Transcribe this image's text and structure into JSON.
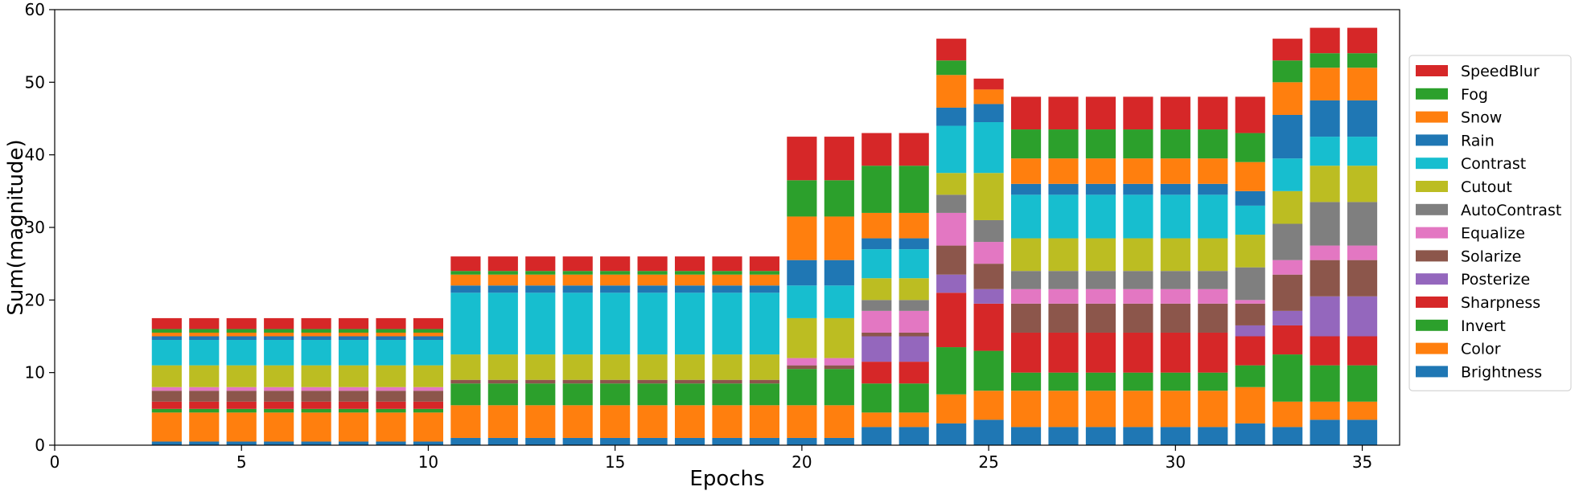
{
  "chart_data": {
    "type": "bar",
    "stacked": true,
    "xlabel": "Epochs",
    "ylabel": "Sum(magnitude)",
    "xlim": [
      0,
      36
    ],
    "ylim": [
      0,
      60
    ],
    "xticks": [
      0,
      5,
      10,
      15,
      20,
      25,
      30,
      35
    ],
    "yticks": [
      0,
      10,
      20,
      30,
      40,
      50,
      60
    ],
    "legend_position": "right",
    "grid": false,
    "x": [
      3,
      4,
      5,
      6,
      7,
      8,
      9,
      10,
      11,
      12,
      13,
      14,
      15,
      16,
      17,
      18,
      19,
      20,
      21,
      22,
      23,
      24,
      25,
      26,
      27,
      28,
      29,
      30,
      31,
      32,
      33,
      34,
      35
    ],
    "series": [
      {
        "name": "Brightness",
        "color": "#1f77b4",
        "values": [
          0.5,
          0.5,
          0.5,
          0.5,
          0.5,
          0.5,
          0.5,
          0.5,
          1,
          1,
          1,
          1,
          1,
          1,
          1,
          1,
          1,
          1,
          1,
          2.5,
          2.5,
          3,
          3.5,
          2.5,
          2.5,
          2.5,
          2.5,
          2.5,
          2.5,
          3,
          2.5,
          3.5,
          3.5
        ]
      },
      {
        "name": "Color",
        "color": "#ff7f0e",
        "values": [
          4,
          4,
          4,
          4,
          4,
          4,
          4,
          4,
          4.5,
          4.5,
          4.5,
          4.5,
          4.5,
          4.5,
          4.5,
          4.5,
          4.5,
          4.5,
          4.5,
          2,
          2,
          4,
          4,
          5,
          5,
          5,
          5,
          5,
          5,
          5,
          3.5,
          2.5,
          2.5
        ]
      },
      {
        "name": "Invert",
        "color": "#2ca02c",
        "values": [
          0.5,
          0.5,
          0.5,
          0.5,
          0.5,
          0.5,
          0.5,
          0.5,
          3,
          3,
          3,
          3,
          3,
          3,
          3,
          3,
          3,
          5,
          5,
          4,
          4,
          6.5,
          5.5,
          2.5,
          2.5,
          2.5,
          2.5,
          2.5,
          2.5,
          3,
          6.5,
          5,
          5
        ]
      },
      {
        "name": "Sharpness",
        "color": "#d62728",
        "values": [
          1,
          1,
          1,
          1,
          1,
          1,
          1,
          1,
          0,
          0,
          0,
          0,
          0,
          0,
          0,
          0,
          0,
          0,
          0,
          3,
          3,
          7.5,
          6.5,
          5.5,
          5.5,
          5.5,
          5.5,
          5.5,
          5.5,
          4,
          4,
          4,
          4
        ]
      },
      {
        "name": "Posterize",
        "color": "#9467bd",
        "values": [
          0,
          0,
          0,
          0,
          0,
          0,
          0,
          0,
          0,
          0,
          0,
          0,
          0,
          0,
          0,
          0,
          0,
          0,
          0,
          3.5,
          3.5,
          2.5,
          2,
          0,
          0,
          0,
          0,
          0,
          0,
          1.5,
          2,
          5.5,
          5.5
        ]
      },
      {
        "name": "Solarize",
        "color": "#8c564b",
        "values": [
          1.5,
          1.5,
          1.5,
          1.5,
          1.5,
          1.5,
          1.5,
          1.5,
          0.5,
          0.5,
          0.5,
          0.5,
          0.5,
          0.5,
          0.5,
          0.5,
          0.5,
          0.5,
          0.5,
          0.5,
          0.5,
          4,
          3.5,
          4,
          4,
          4,
          4,
          4,
          4,
          3,
          5,
          5,
          5
        ]
      },
      {
        "name": "Equalize",
        "color": "#e377c2",
        "values": [
          0.5,
          0.5,
          0.5,
          0.5,
          0.5,
          0.5,
          0.5,
          0.5,
          0,
          0,
          0,
          0,
          0,
          0,
          0,
          0,
          0,
          1,
          1,
          3,
          3,
          4.5,
          3,
          2,
          2,
          2,
          2,
          2,
          2,
          0.5,
          2,
          2,
          2
        ]
      },
      {
        "name": "AutoContrast",
        "color": "#7f7f7f",
        "values": [
          0,
          0,
          0,
          0,
          0,
          0,
          0,
          0,
          0,
          0,
          0,
          0,
          0,
          0,
          0,
          0,
          0,
          0,
          0,
          1.5,
          1.5,
          2.5,
          3,
          2.5,
          2.5,
          2.5,
          2.5,
          2.5,
          2.5,
          4.5,
          5,
          6,
          6
        ]
      },
      {
        "name": "Cutout",
        "color": "#bcbd22",
        "values": [
          3,
          3,
          3,
          3,
          3,
          3,
          3,
          3,
          3.5,
          3.5,
          3.5,
          3.5,
          3.5,
          3.5,
          3.5,
          3.5,
          3.5,
          5.5,
          5.5,
          3,
          3,
          3,
          6.5,
          4.5,
          4.5,
          4.5,
          4.5,
          4.5,
          4.5,
          4.5,
          4.5,
          5,
          5
        ]
      },
      {
        "name": "Contrast",
        "color": "#17becf",
        "values": [
          3.5,
          3.5,
          3.5,
          3.5,
          3.5,
          3.5,
          3.5,
          3.5,
          8.5,
          8.5,
          8.5,
          8.5,
          8.5,
          8.5,
          8.5,
          8.5,
          8.5,
          4.5,
          4.5,
          4,
          4,
          6.5,
          7,
          6,
          6,
          6,
          6,
          6,
          6,
          4,
          4.5,
          4,
          4
        ]
      },
      {
        "name": "Rain",
        "color": "#1f77b4",
        "values": [
          0.5,
          0.5,
          0.5,
          0.5,
          0.5,
          0.5,
          0.5,
          0.5,
          1,
          1,
          1,
          1,
          1,
          1,
          1,
          1,
          1,
          3.5,
          3.5,
          1.5,
          1.5,
          2.5,
          2.5,
          1.5,
          1.5,
          1.5,
          1.5,
          1.5,
          1.5,
          2,
          6,
          5,
          5
        ]
      },
      {
        "name": "Snow",
        "color": "#ff7f0e",
        "values": [
          0.5,
          0.5,
          0.5,
          0.5,
          0.5,
          0.5,
          0.5,
          0.5,
          1.5,
          1.5,
          1.5,
          1.5,
          1.5,
          1.5,
          1.5,
          1.5,
          1.5,
          6,
          6,
          3.5,
          3.5,
          4.5,
          2,
          3.5,
          3.5,
          3.5,
          3.5,
          3.5,
          3.5,
          4,
          4.5,
          4.5,
          4.5
        ]
      },
      {
        "name": "Fog",
        "color": "#2ca02c",
        "values": [
          0.5,
          0.5,
          0.5,
          0.5,
          0.5,
          0.5,
          0.5,
          0.5,
          0.5,
          0.5,
          0.5,
          0.5,
          0.5,
          0.5,
          0.5,
          0.5,
          0.5,
          5,
          5,
          6.5,
          6.5,
          2,
          0,
          4,
          4,
          4,
          4,
          4,
          4,
          4,
          3,
          2,
          2
        ]
      },
      {
        "name": "SpeedBlur",
        "color": "#d62728",
        "values": [
          1.5,
          1.5,
          1.5,
          1.5,
          1.5,
          1.5,
          1.5,
          1.5,
          2,
          2,
          2,
          2,
          2,
          2,
          2,
          2,
          2,
          6,
          6,
          4.5,
          4.5,
          3,
          1.5,
          4.5,
          4.5,
          4.5,
          4.5,
          4.5,
          4.5,
          5,
          3,
          3.5,
          3.5
        ]
      }
    ]
  }
}
